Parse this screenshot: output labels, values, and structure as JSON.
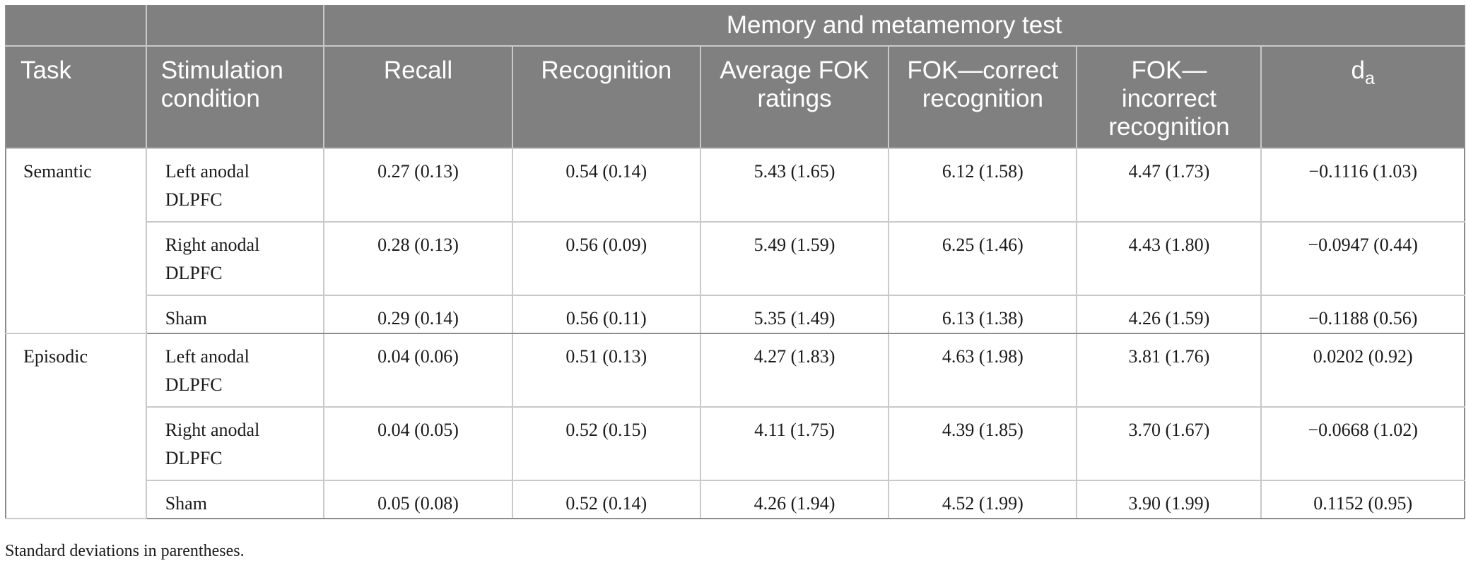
{
  "table": {
    "group_header": "Memory and metamemory test",
    "columns": {
      "task": "Task",
      "condition": "Stimulation condition",
      "recall": "Recall",
      "recognition": "Recognition",
      "avg_fok": "Average FOK ratings",
      "fok_correct": "FOK—correct recognition",
      "fok_incorrect": "FOK—incorrect recognition",
      "da_base": "d",
      "da_sub": "a"
    },
    "rows": [
      {
        "task": "Semantic",
        "condition": "Left anodal DLPFC",
        "recall": "0.27 (0.13)",
        "recognition": "0.54 (0.14)",
        "avg_fok": "5.43 (1.65)",
        "fok_correct": "6.12 (1.58)",
        "fok_incorrect": "4.47 (1.73)",
        "da": "−0.1116 (1.03)"
      },
      {
        "task": "",
        "condition": "Right anodal DLPFC",
        "recall": "0.28 (0.13)",
        "recognition": "0.56 (0.09)",
        "avg_fok": "5.49 (1.59)",
        "fok_correct": "6.25 (1.46)",
        "fok_incorrect": "4.43 (1.80)",
        "da": "−0.0947 (0.44)"
      },
      {
        "task": "",
        "condition": "Sham",
        "recall": "0.29 (0.14)",
        "recognition": "0.56 (0.11)",
        "avg_fok": "5.35 (1.49)",
        "fok_correct": "6.13 (1.38)",
        "fok_incorrect": "4.26 (1.59)",
        "da": "−0.1188 (0.56)"
      },
      {
        "task": "Episodic",
        "condition": "Left anodal DLPFC",
        "recall": "0.04 (0.06)",
        "recognition": "0.51 (0.13)",
        "avg_fok": "4.27 (1.83)",
        "fok_correct": "4.63 (1.98)",
        "fok_incorrect": "3.81 (1.76)",
        "da": "0.0202 (0.92)"
      },
      {
        "task": "",
        "condition": "Right anodal DLPFC",
        "recall": "0.04 (0.05)",
        "recognition": "0.52 (0.15)",
        "avg_fok": "4.11 (1.75)",
        "fok_correct": "4.39 (1.85)",
        "fok_incorrect": "3.70 (1.67)",
        "da": "−0.0668 (1.02)"
      },
      {
        "task": "",
        "condition": "Sham",
        "recall": "0.05 (0.08)",
        "recognition": "0.52 (0.14)",
        "avg_fok": "4.26 (1.94)",
        "fok_correct": "4.52 (1.99)",
        "fok_incorrect": "3.90 (1.99)",
        "da": "0.1152 (0.95)"
      }
    ],
    "footnote": "Standard deviations in parentheses."
  },
  "colors": {
    "header_bg": "#808080",
    "header_text": "#ffffff",
    "grid": "#c9c9c9"
  }
}
